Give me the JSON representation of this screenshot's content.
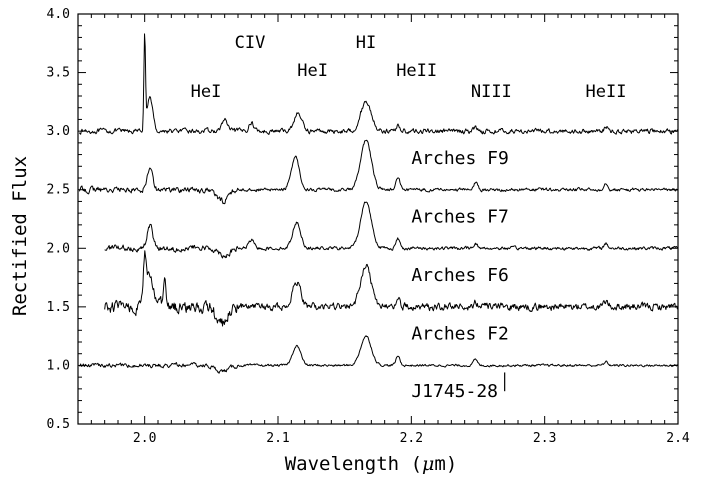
{
  "chart_data": {
    "type": "line",
    "title": "",
    "xlabel_main": "Wavelength (",
    "xlabel_mu": "μ",
    "xlabel_unit": "m)",
    "ylabel": "Rectified Flux",
    "xlim": [
      1.95,
      2.4
    ],
    "ylim": [
      0.5,
      4.0
    ],
    "x_ticks": [
      "2.0",
      "2.1",
      "2.2",
      "2.3",
      "2.4"
    ],
    "y_ticks": [
      "0.5",
      "1.0",
      "1.5",
      "2.0",
      "2.5",
      "3.0",
      "3.5",
      "4.0"
    ],
    "line_annotations": [
      {
        "text": "CIV",
        "x": 2.079,
        "y": 3.71
      },
      {
        "text": "HI",
        "x": 2.166,
        "y": 3.71
      },
      {
        "text": "HeI",
        "x": 2.046,
        "y": 3.29
      },
      {
        "text": "HeI",
        "x": 2.126,
        "y": 3.47
      },
      {
        "text": "HeII",
        "x": 2.204,
        "y": 3.47
      },
      {
        "text": "NIII",
        "x": 2.26,
        "y": 3.29
      },
      {
        "text": "HeII",
        "x": 2.346,
        "y": 3.29
      }
    ],
    "marker_label": "J1745-28",
    "marker_x": 2.27,
    "series": [
      {
        "label": "",
        "baseline": 3.0,
        "x_start": 1.951,
        "features": [
          [
            2.0,
            0.8,
            0.0006
          ],
          [
            2.004,
            0.3,
            0.002
          ],
          [
            2.06,
            0.1,
            0.002
          ],
          [
            2.08,
            0.07,
            0.002
          ],
          [
            2.115,
            0.15,
            0.003
          ],
          [
            2.166,
            0.25,
            0.004
          ],
          [
            2.19,
            0.05,
            0.0015
          ],
          [
            2.248,
            0.03,
            0.0015
          ],
          [
            2.346,
            0.03,
            0.0015
          ]
        ],
        "noise": 0.02
      },
      {
        "label": "Arches F9",
        "baseline": 2.5,
        "x_start": 1.951,
        "features": [
          [
            2.004,
            0.2,
            0.002
          ],
          [
            2.058,
            -0.1,
            0.004
          ],
          [
            2.113,
            0.28,
            0.003
          ],
          [
            2.166,
            0.42,
            0.004
          ],
          [
            2.19,
            0.1,
            0.0015
          ],
          [
            2.248,
            0.06,
            0.0015
          ],
          [
            2.346,
            0.06,
            0.0015
          ]
        ],
        "noise": 0.014
      },
      {
        "label": "Arches F7",
        "baseline": 2.0,
        "x_start": 1.97,
        "features": [
          [
            2.004,
            0.2,
            0.002
          ],
          [
            2.06,
            -0.06,
            0.004
          ],
          [
            2.08,
            0.07,
            0.002
          ],
          [
            2.114,
            0.22,
            0.003
          ],
          [
            2.166,
            0.4,
            0.004
          ],
          [
            2.19,
            0.08,
            0.0015
          ],
          [
            2.248,
            0.04,
            0.0015
          ],
          [
            2.346,
            0.04,
            0.0015
          ]
        ],
        "noise": 0.014
      },
      {
        "label": "Arches F6",
        "baseline": 1.5,
        "x_start": 1.97,
        "features": [
          [
            2.0,
            0.35,
            0.001
          ],
          [
            2.004,
            0.25,
            0.003
          ],
          [
            2.015,
            0.2,
            0.001
          ],
          [
            2.058,
            -0.15,
            0.004
          ],
          [
            2.114,
            0.22,
            0.003
          ],
          [
            2.166,
            0.35,
            0.004
          ],
          [
            2.19,
            0.08,
            0.0015
          ],
          [
            2.248,
            0.05,
            0.0015
          ],
          [
            2.346,
            0.05,
            0.0015
          ]
        ],
        "noise": 0.03
      },
      {
        "label": "Arches F2",
        "baseline": 1.0,
        "x_start": 1.951,
        "features": [
          [
            2.058,
            -0.05,
            0.005
          ],
          [
            2.114,
            0.17,
            0.003
          ],
          [
            2.166,
            0.25,
            0.004
          ],
          [
            2.19,
            0.08,
            0.0015
          ],
          [
            2.248,
            0.05,
            0.0015
          ],
          [
            2.346,
            0.03,
            0.0015
          ]
        ],
        "noise": 0.01
      }
    ],
    "series_label_positions": [
      {
        "label": "Arches F9",
        "x": 2.2,
        "y": 2.72
      },
      {
        "label": "Arches F7",
        "x": 2.2,
        "y": 2.22
      },
      {
        "label": "Arches F6",
        "x": 2.2,
        "y": 1.72
      },
      {
        "label": "Arches F2",
        "x": 2.2,
        "y": 1.22
      }
    ],
    "grid": false,
    "legend": "none"
  }
}
